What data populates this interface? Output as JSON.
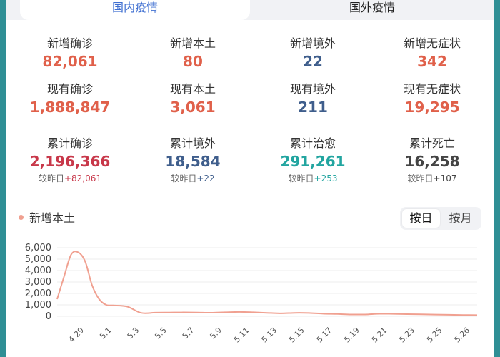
{
  "tabs": {
    "domestic": "国内疫情",
    "foreign": "国外疫情"
  },
  "stats": [
    {
      "label": "新增确诊",
      "value": "82,061",
      "color": "#e0604a"
    },
    {
      "label": "新增本土",
      "value": "80",
      "color": "#e0604a"
    },
    {
      "label": "新增境外",
      "value": "22",
      "color": "#3f5e8c"
    },
    {
      "label": "新增无症状",
      "value": "342",
      "color": "#e0604a"
    },
    {
      "label": "现有确诊",
      "value": "1,888,847",
      "color": "#e0604a"
    },
    {
      "label": "现有本土",
      "value": "3,061",
      "color": "#e0604a"
    },
    {
      "label": "现有境外",
      "value": "211",
      "color": "#3f5e8c"
    },
    {
      "label": "现有无症状",
      "value": "19,295",
      "color": "#e0604a"
    },
    {
      "label": "累计确诊",
      "value": "2,196,366",
      "color": "#c8384a",
      "cmp_prefix": "较昨日",
      "delta": "+82,061",
      "delta_color": "#c8384a"
    },
    {
      "label": "累计境外",
      "value": "18,584",
      "color": "#3f5e8c",
      "cmp_prefix": "较昨日",
      "delta": "+22",
      "delta_color": "#3f5e8c"
    },
    {
      "label": "累计治愈",
      "value": "291,261",
      "color": "#22a5a0",
      "cmp_prefix": "较昨日",
      "delta": "+253",
      "delta_color": "#22a5a0"
    },
    {
      "label": "累计死亡",
      "value": "16,258",
      "color": "#444444",
      "cmp_prefix": "较昨日",
      "delta": "+107",
      "delta_color": "#444444"
    }
  ],
  "chart_section": {
    "legend": "新增本土",
    "toggle": {
      "day": "按日",
      "month": "按月"
    }
  },
  "chart_data": {
    "type": "line",
    "series": [
      {
        "name": "新增本土",
        "color": "#f0a090",
        "x": [
          0,
          0.5,
          1,
          1.5,
          2,
          2.5,
          3,
          3.5,
          4,
          5,
          6,
          7,
          8,
          9,
          10,
          11,
          12,
          13,
          14,
          15,
          16,
          17,
          18,
          19,
          20,
          21,
          22,
          23,
          24,
          25,
          26,
          27,
          28,
          29,
          30
        ],
        "values": [
          1500,
          3500,
          5400,
          5600,
          4800,
          2700,
          1500,
          1000,
          950,
          850,
          300,
          320,
          330,
          340,
          330,
          310,
          350,
          380,
          350,
          300,
          260,
          300,
          290,
          230,
          200,
          160,
          160,
          220,
          210,
          190,
          170,
          150,
          130,
          110,
          100
        ]
      }
    ],
    "x_tick_labels": [
      "4.29",
      "5.1",
      "5.3",
      "5.5",
      "5.7",
      "5.9",
      "5.11",
      "5.13",
      "5.15",
      "5.17",
      "5.19",
      "5.21",
      "5.23",
      "5.25",
      "5.26"
    ],
    "y_ticks": [
      0,
      1000,
      2000,
      3000,
      4000,
      5000,
      6000
    ],
    "y_tick_labels": [
      "0",
      "1,000",
      "2,000",
      "3,000",
      "4,000",
      "5,000",
      "6,000"
    ],
    "ylim": [
      0,
      6000
    ],
    "grid": true
  }
}
